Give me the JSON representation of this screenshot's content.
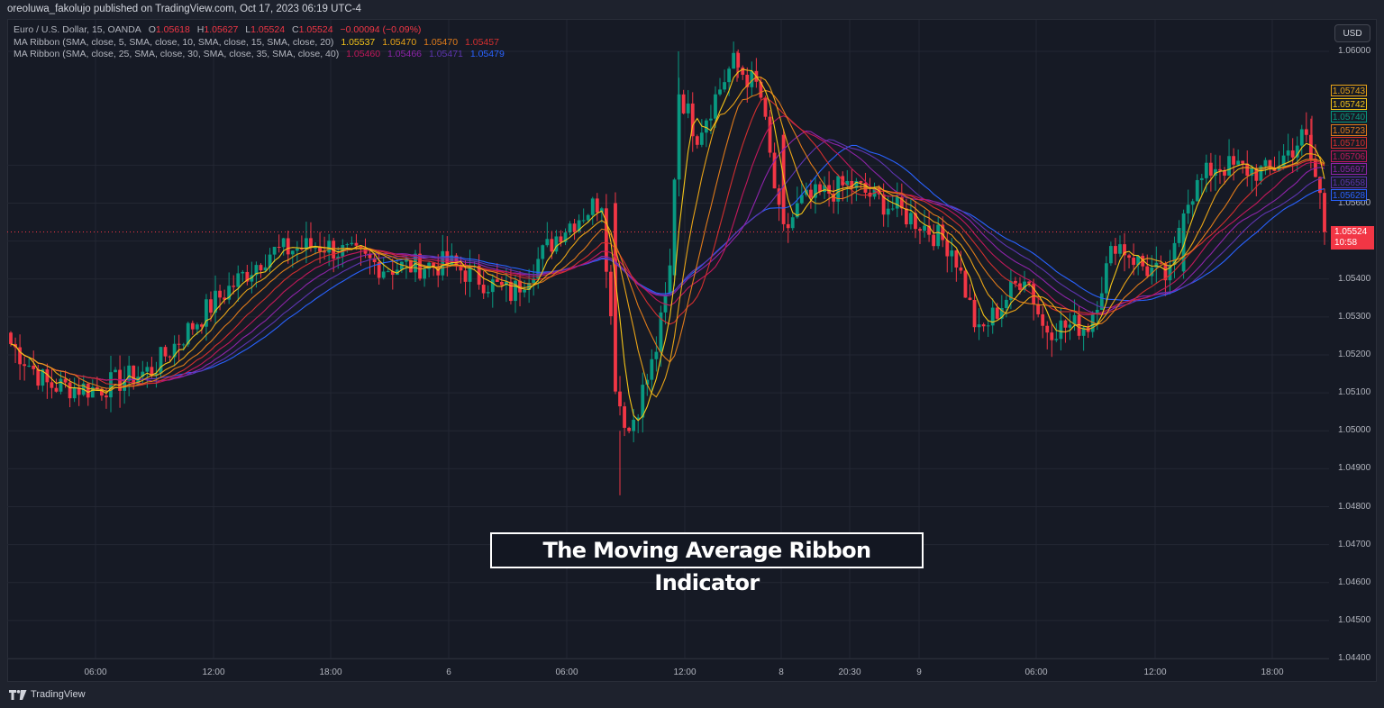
{
  "header": {
    "published": "oreoluwa_fakolujo published on TradingView.com, Oct 17, 2023 06:19 UTC-4"
  },
  "legend": {
    "symbol": "Euro / U.S. Dollar, 15, OANDA",
    "ohlc": {
      "o_label": "O",
      "o": "1.05618",
      "h_label": "H",
      "h": "1.05627",
      "l_label": "L",
      "l": "1.05524",
      "c_label": "C",
      "c": "1.05524",
      "change": "−0.00094 (−0.09%)"
    },
    "ribbon1": {
      "label": "MA Ribbon (SMA, close, 5, SMA, close, 10, SMA, close, 15, SMA, close, 20)",
      "values": [
        "1.05537",
        "1.05470",
        "1.05470",
        "1.05457"
      ]
    },
    "ribbon2": {
      "label": "MA Ribbon (SMA, close, 25, SMA, close, 30, SMA, close, 35, SMA, close, 40)",
      "values": [
        "1.05460",
        "1.05466",
        "1.05471",
        "1.05479"
      ]
    }
  },
  "colors": {
    "up": "#089981",
    "down": "#f23645",
    "ma": [
      "#f5c518",
      "#e8a317",
      "#e07b1a",
      "#d32f2f",
      "#c2185b",
      "#8e24aa",
      "#5e35b1",
      "#2962ff"
    ],
    "background": "#161a25",
    "grid": "#232733"
  },
  "price_axis": {
    "currency_button": "USD",
    "ticks": [
      "1.06000",
      "1.05600",
      "1.05400",
      "1.05300",
      "1.05200",
      "1.05100",
      "1.05000",
      "1.04900",
      "1.04800",
      "1.04700",
      "1.04600",
      "1.04500",
      "1.04400"
    ],
    "ma_badges": [
      "1.05743",
      "1.05742",
      "1.05740",
      "1.05723",
      "1.05710",
      "1.05706",
      "1.05697",
      "1.05658",
      "1.05628"
    ],
    "last_price": "1.05524",
    "countdown": "10:58"
  },
  "time_axis": {
    "labels": [
      "06:00",
      "12:00",
      "18:00",
      "6",
      "06:00",
      "12:00",
      "8",
      "20:30",
      "9",
      "06:00",
      "12:00",
      "18:00"
    ]
  },
  "caption": "The Moving Average Ribbon Indicator",
  "footer": {
    "brand": "TradingView"
  },
  "chart_data": {
    "type": "candlestick",
    "title": "Euro / U.S. Dollar, 15, OANDA",
    "subtitle": "MA Ribbon indicator (SMA 5,10,15,20,25,30,35,40)",
    "xlabel": "",
    "ylabel": "USD",
    "ylim": [
      1.044,
      1.0605
    ],
    "grid": true,
    "legend_position": "top-left",
    "x_ticks": [
      "06:00",
      "12:00",
      "18:00",
      "6",
      "06:00",
      "12:00",
      "8",
      "20:30",
      "9",
      "06:00",
      "12:00",
      "18:00"
    ],
    "y_ticks": [
      1.06,
      1.056,
      1.054,
      1.053,
      1.052,
      1.051,
      1.05,
      1.049,
      1.048,
      1.047,
      1.046,
      1.045,
      1.044
    ],
    "last_ohlc": {
      "open": 1.05618,
      "high": 1.05627,
      "low": 1.05524,
      "close": 1.05524,
      "change": -0.00094,
      "change_pct": -0.09
    },
    "series": [
      {
        "name": "SMA 5",
        "last": 1.05537
      },
      {
        "name": "SMA 10",
        "last": 1.0547
      },
      {
        "name": "SMA 15",
        "last": 1.0547
      },
      {
        "name": "SMA 20",
        "last": 1.05457
      },
      {
        "name": "SMA 25",
        "last": 1.0546
      },
      {
        "name": "SMA 30",
        "last": 1.05466
      },
      {
        "name": "SMA 35",
        "last": 1.05471
      },
      {
        "name": "SMA 40",
        "last": 1.05479
      }
    ],
    "price_path_approx": [
      {
        "t": "start",
        "close": 1.0524
      },
      {
        "t": "~05:00",
        "close": 1.0512
      },
      {
        "t": "06:00",
        "close": 1.0511
      },
      {
        "t": "09:00",
        "close": 1.0516
      },
      {
        "t": "12:00",
        "close": 1.0534
      },
      {
        "t": "15:00",
        "close": 1.0547
      },
      {
        "t": "18:00",
        "close": 1.0549
      },
      {
        "t": "22:00",
        "close": 1.0543
      },
      {
        "t": "6",
        "close": 1.0544
      },
      {
        "t": "03:00",
        "close": 1.0536
      },
      {
        "t": "06:00",
        "close": 1.0553
      },
      {
        "t": "07:30",
        "close": 1.0561
      },
      {
        "t": "09:00",
        "close": 1.051
      },
      {
        "t": "09:15",
        "close": 1.05
      },
      {
        "t": "10:30",
        "close": 1.0519
      },
      {
        "t": "11:30",
        "close": 1.054
      },
      {
        "t": "12:00",
        "close": 1.059
      },
      {
        "t": "13:00",
        "close": 1.0578
      },
      {
        "t": "15:00",
        "close": 1.0597
      },
      {
        "t": "16:00",
        "close": 1.059
      },
      {
        "t": "8",
        "close": 1.0551
      },
      {
        "t": "19:00",
        "close": 1.056
      },
      {
        "t": "20:30",
        "close": 1.0565
      },
      {
        "t": "9",
        "close": 1.0555
      },
      {
        "t": "01:30",
        "close": 1.0548
      },
      {
        "t": "03:00",
        "close": 1.0525
      },
      {
        "t": "05:00",
        "close": 1.0542
      },
      {
        "t": "06:00",
        "close": 1.0527
      },
      {
        "t": "08:30",
        "close": 1.0528
      },
      {
        "t": "10:00",
        "close": 1.055
      },
      {
        "t": "11:30",
        "close": 1.0543
      },
      {
        "t": "12:30",
        "close": 1.054
      },
      {
        "t": "13:00",
        "close": 1.056
      },
      {
        "t": "15:00",
        "close": 1.057
      },
      {
        "t": "18:00",
        "close": 1.0568
      },
      {
        "t": "20:00",
        "close": 1.0578
      },
      {
        "t": "last",
        "close": 1.05524
      }
    ]
  }
}
